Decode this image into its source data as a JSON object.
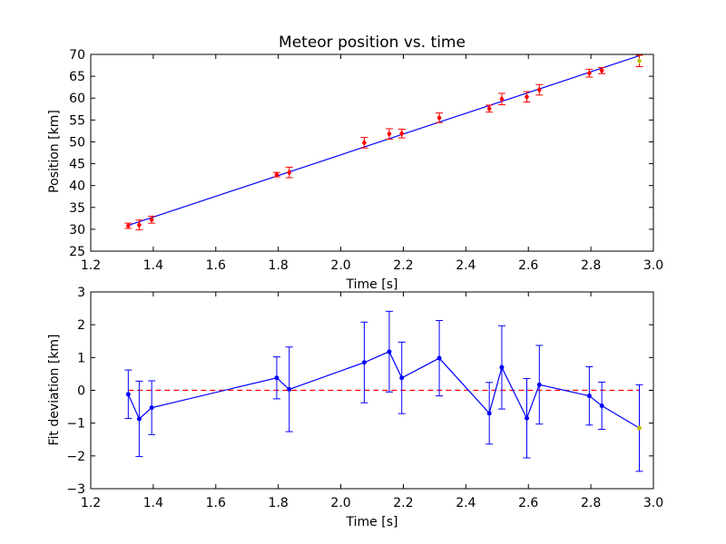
{
  "chart_data": [
    {
      "type": "scatter",
      "title": "Meteor position vs. time",
      "xlabel": "Time [s]",
      "ylabel": "Position [km]",
      "xlim": [
        1.2,
        3.0
      ],
      "ylim": [
        25,
        70
      ],
      "xticks": [
        "1.2",
        "1.4",
        "1.6",
        "1.8",
        "2.0",
        "2.2",
        "2.4",
        "2.6",
        "2.8",
        "3.0"
      ],
      "yticks": [
        "25",
        "30",
        "35",
        "40",
        "45",
        "50",
        "55",
        "60",
        "65",
        "70"
      ],
      "grid": false,
      "points": {
        "x": [
          1.32,
          1.355,
          1.395,
          1.795,
          1.835,
          2.075,
          2.155,
          2.195,
          2.315,
          2.475,
          2.515,
          2.595,
          2.635,
          2.795,
          2.835,
          2.955
        ],
        "y": [
          30.8,
          31.0,
          32.2,
          42.5,
          43.0,
          49.8,
          51.8,
          51.9,
          55.5,
          57.6,
          59.8,
          60.3,
          61.9,
          65.7,
          66.3,
          68.5
        ],
        "yerr": [
          0.6,
          1.1,
          0.8,
          0.5,
          1.2,
          1.2,
          1.2,
          1.0,
          1.1,
          0.8,
          1.3,
          1.2,
          1.2,
          0.9,
          0.7,
          1.3
        ],
        "marker_color": "#ff0000",
        "last_marker_color": "#bfbf00",
        "errorbar_color": "#ff0000"
      },
      "fit_line": {
        "x": [
          1.32,
          2.955
        ],
        "y": [
          30.9,
          69.7
        ],
        "color": "#0000ff"
      }
    },
    {
      "type": "line",
      "title": "",
      "xlabel": "Time [s]",
      "ylabel": "Fit deviation [km]",
      "xlim": [
        1.2,
        3.0
      ],
      "ylim": [
        -3,
        3
      ],
      "xticks": [
        "1.2",
        "1.4",
        "1.6",
        "1.8",
        "2.0",
        "2.2",
        "2.4",
        "2.6",
        "2.8",
        "3.0"
      ],
      "yticks": [
        "−3",
        "−2",
        "−1",
        "0",
        "1",
        "2",
        "3"
      ],
      "grid": false,
      "series": {
        "x": [
          1.32,
          1.355,
          1.395,
          1.795,
          1.835,
          2.075,
          2.155,
          2.195,
          2.315,
          2.475,
          2.515,
          2.595,
          2.635,
          2.795,
          2.835,
          2.955
        ],
        "y": [
          -0.12,
          -0.87,
          -0.53,
          0.38,
          0.03,
          0.85,
          1.18,
          0.38,
          0.98,
          -0.7,
          0.7,
          -0.85,
          0.17,
          -0.17,
          -0.47,
          -1.15
        ],
        "yerr": [
          0.74,
          1.15,
          0.82,
          0.64,
          1.29,
          1.23,
          1.23,
          1.09,
          1.15,
          0.94,
          1.27,
          1.21,
          1.2,
          0.89,
          0.72,
          1.32
        ],
        "color": "#0000ff",
        "last_marker_color": "#bfbf00"
      },
      "reference_line": {
        "y": 0,
        "style": "dashed",
        "color": "#ff0000"
      }
    }
  ]
}
